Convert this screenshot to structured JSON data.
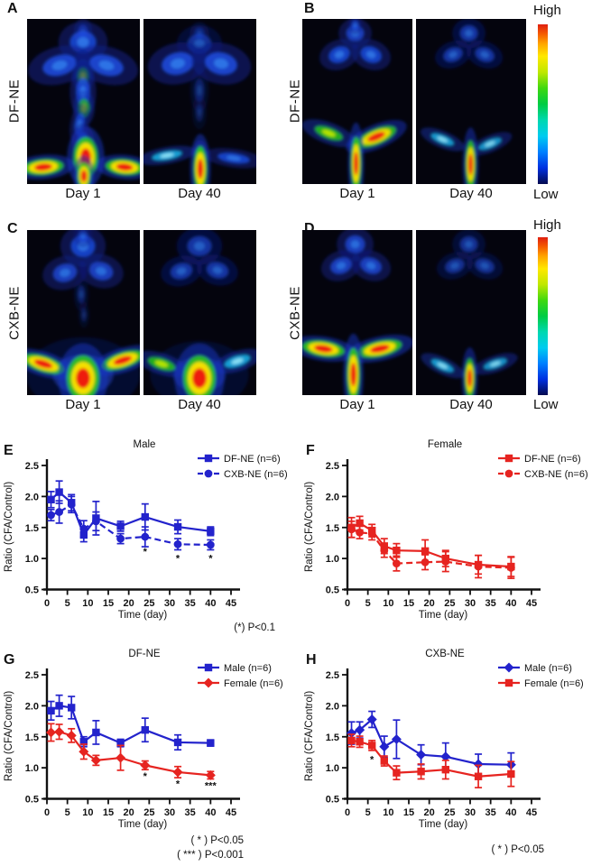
{
  "figure": {
    "panels": [
      {
        "id": "A",
        "row_label": "DF-NE",
        "colorbar": false,
        "images": [
          {
            "label": "Day 1",
            "variant": "A1"
          },
          {
            "label": "Day 40",
            "variant": "A2"
          }
        ]
      },
      {
        "id": "B",
        "row_label": "DF-NE",
        "colorbar": true,
        "images": [
          {
            "label": "Day 1",
            "variant": "B1"
          },
          {
            "label": "Day 40",
            "variant": "B2"
          }
        ]
      },
      {
        "id": "C",
        "row_label": "CXB-NE",
        "colorbar": false,
        "images": [
          {
            "label": "Day 1",
            "variant": "C1"
          },
          {
            "label": "Day 40",
            "variant": "C2"
          }
        ]
      },
      {
        "id": "D",
        "row_label": "CXB-NE",
        "colorbar": true,
        "images": [
          {
            "label": "Day 1",
            "variant": "D1"
          },
          {
            "label": "Day 40",
            "variant": "D2"
          }
        ]
      }
    ],
    "colorbar": {
      "high_label": "High",
      "low_label": "Low",
      "gradient": [
        "#e01f10 0%",
        "#f55c00 6%",
        "#ffa400 12%",
        "#ffe800 20%",
        "#bfe800 30%",
        "#3fd810 40%",
        "#00cc44 50%",
        "#00d8b0 60%",
        "#00ccf0 70%",
        "#0080ff 80%",
        "#0030e0 90%",
        "#040a50 100%"
      ]
    }
  },
  "colors": {
    "blue": "#2323cc",
    "red": "#e62420",
    "text": "#111111",
    "image_bg": "#04040d"
  },
  "chart_data": [
    {
      "panel_label": "E",
      "type": "line",
      "title": "Male",
      "xlabel": "Time (day)",
      "ylabel": "Ratio (CFA/Control)",
      "xlim": [
        0,
        45
      ],
      "ylim": [
        0.5,
        2.5
      ],
      "xticks": [
        0,
        5,
        10,
        15,
        20,
        25,
        30,
        35,
        40,
        45
      ],
      "yticks": [
        0.5,
        1.0,
        1.5,
        2.0,
        2.5
      ],
      "x": [
        1,
        3,
        6,
        9,
        12,
        18,
        24,
        32,
        40
      ],
      "series": [
        {
          "name": "DF-NE (n=6)",
          "color": "#2323cc",
          "marker": "square",
          "line": "solid",
          "values": [
            1.95,
            2.07,
            1.9,
            1.38,
            1.65,
            1.52,
            1.67,
            1.51,
            1.44
          ],
          "errors": [
            0.13,
            0.18,
            0.13,
            0.11,
            0.27,
            0.08,
            0.21,
            0.11,
            0.07
          ]
        },
        {
          "name": "CXB-NE (n=6)",
          "color": "#2323cc",
          "marker": "circle",
          "line": "dashed",
          "values": [
            1.7,
            1.75,
            1.87,
            1.48,
            1.6,
            1.32,
            1.35,
            1.23,
            1.22
          ],
          "errors": [
            0.09,
            0.18,
            0.13,
            0.13,
            0.15,
            0.08,
            0.16,
            0.09,
            0.08
          ]
        }
      ],
      "sig_marks": [
        {
          "x": 24,
          "y": 1.12,
          "text": "*"
        },
        {
          "x": 32,
          "y": 1.01,
          "text": "*"
        },
        {
          "x": 40,
          "y": 1.01,
          "text": "*"
        }
      ],
      "notes": [
        "(*) P<0.1"
      ],
      "legend_position": "top-right",
      "grid": false
    },
    {
      "panel_label": "F",
      "type": "line",
      "title": "Female",
      "xlabel": "Time (day)",
      "ylabel": "Ratio (CFA/Control)",
      "xlim": [
        0,
        45
      ],
      "ylim": [
        0.5,
        2.5
      ],
      "xticks": [
        0,
        5,
        10,
        15,
        20,
        25,
        30,
        35,
        40,
        45
      ],
      "yticks": [
        0.5,
        1.0,
        1.5,
        2.0,
        2.5
      ],
      "x": [
        1,
        3,
        6,
        9,
        12,
        19,
        24,
        32,
        40
      ],
      "series": [
        {
          "name": "DF-NE (n=6)",
          "color": "#e62420",
          "marker": "square",
          "line": "solid",
          "values": [
            1.5,
            1.57,
            1.45,
            1.2,
            1.13,
            1.12,
            1.0,
            0.9,
            0.87
          ],
          "errors": [
            0.16,
            0.11,
            0.1,
            0.12,
            0.11,
            0.18,
            0.13,
            0.15,
            0.16
          ]
        },
        {
          "name": "CXB-NE (n=6)",
          "color": "#e62420",
          "marker": "circle",
          "line": "dashed",
          "values": [
            1.47,
            1.42,
            1.4,
            1.13,
            0.92,
            0.94,
            0.95,
            0.87,
            0.85
          ],
          "errors": [
            0.13,
            0.1,
            0.1,
            0.11,
            0.12,
            0.12,
            0.16,
            0.18,
            0.17
          ]
        }
      ],
      "sig_marks": [],
      "notes": [],
      "legend_position": "top-right",
      "grid": false
    },
    {
      "panel_label": "G",
      "type": "line",
      "title": "DF-NE",
      "xlabel": "Time (day)",
      "ylabel": "Ratio (CFA/Control)",
      "xlim": [
        0,
        45
      ],
      "ylim": [
        0.5,
        2.5
      ],
      "xticks": [
        0,
        5,
        10,
        15,
        20,
        25,
        30,
        35,
        40,
        45
      ],
      "yticks": [
        0.5,
        1.0,
        1.5,
        2.0,
        2.5
      ],
      "x": [
        1,
        3,
        6,
        9,
        12,
        18,
        24,
        32,
        40
      ],
      "series": [
        {
          "name": "Male (n=6)",
          "color": "#2323cc",
          "marker": "square",
          "line": "solid",
          "values": [
            1.92,
            2.0,
            1.97,
            1.42,
            1.57,
            1.4,
            1.61,
            1.41,
            1.4
          ],
          "errors": [
            0.15,
            0.17,
            0.18,
            0.08,
            0.19,
            0.06,
            0.19,
            0.12,
            0.05
          ]
        },
        {
          "name": "Female (n=6)",
          "color": "#e62420",
          "marker": "diamond",
          "line": "solid",
          "values": [
            1.57,
            1.58,
            1.52,
            1.26,
            1.12,
            1.16,
            1.04,
            0.93,
            0.88
          ],
          "errors": [
            0.14,
            0.12,
            0.11,
            0.12,
            0.08,
            0.2,
            0.07,
            0.09,
            0.06
          ]
        }
      ],
      "sig_marks": [
        {
          "x": 24,
          "y": 0.87,
          "text": "*"
        },
        {
          "x": 32,
          "y": 0.75,
          "text": "*"
        },
        {
          "x": 40,
          "y": 0.72,
          "text": "***"
        }
      ],
      "notes": [
        "( * ) P<0.05",
        "( *** ) P<0.001"
      ],
      "legend_position": "top-right",
      "grid": false
    },
    {
      "panel_label": "H",
      "type": "line",
      "title": "CXB-NE",
      "xlabel": "Time (day)",
      "ylabel": "Ratio (CFA/Control)",
      "xlim": [
        0,
        45
      ],
      "ylim": [
        0.5,
        2.5
      ],
      "xticks": [
        0,
        5,
        10,
        15,
        20,
        25,
        30,
        35,
        40,
        45
      ],
      "yticks": [
        0.5,
        1.0,
        1.5,
        2.0,
        2.5
      ],
      "x": [
        1,
        3,
        6,
        9,
        12,
        18,
        24,
        32,
        40
      ],
      "series": [
        {
          "name": "Male (n=6)",
          "color": "#2323cc",
          "marker": "diamond",
          "line": "solid",
          "values": [
            1.56,
            1.61,
            1.78,
            1.34,
            1.46,
            1.21,
            1.18,
            1.06,
            1.05
          ],
          "errors": [
            0.18,
            0.13,
            0.13,
            0.17,
            0.31,
            0.16,
            0.22,
            0.16,
            0.19
          ]
        },
        {
          "name": "Female (n=6)",
          "color": "#e62420",
          "marker": "square",
          "line": "solid",
          "values": [
            1.44,
            1.42,
            1.36,
            1.11,
            0.92,
            0.94,
            0.97,
            0.86,
            0.9
          ],
          "errors": [
            0.1,
            0.09,
            0.08,
            0.08,
            0.11,
            0.12,
            0.15,
            0.18,
            0.2
          ]
        }
      ],
      "sig_marks": [
        {
          "x": 6,
          "y": 1.14,
          "text": "*"
        }
      ],
      "notes": [
        "( * ) P<0.05"
      ],
      "legend_position": "top-right",
      "grid": false
    }
  ]
}
